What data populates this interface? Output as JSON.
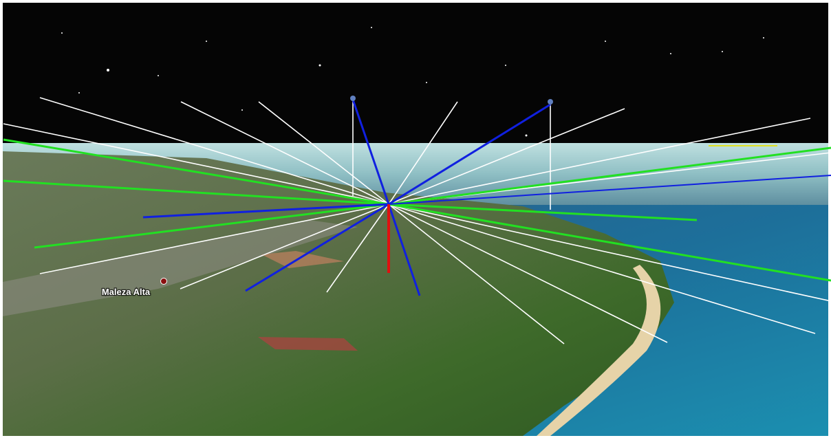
{
  "place_labels": [
    {
      "label": "Maleza Alta"
    }
  ]
}
